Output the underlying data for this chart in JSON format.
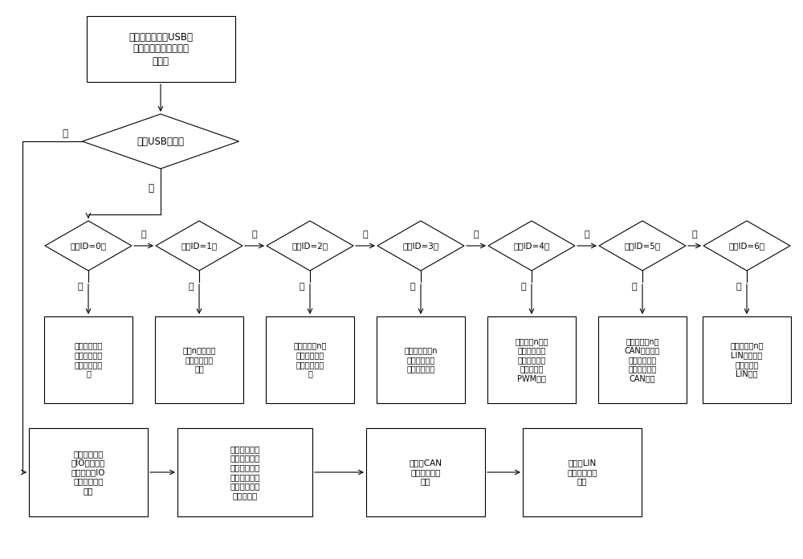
{
  "bg_color": "#ffffff",
  "line_color": "#000000",
  "title_text": "系统初始化，对USB接\n口及各个信号通道进行\n初始化",
  "usb_text": "收到USB报文？",
  "id_texts": [
    "报文ID=0？",
    "报文ID=1？",
    "报文ID=2？",
    "报文ID=3？",
    "报文ID=4？",
    "报文ID=5？",
    "报文ID=6？"
  ],
  "action_texts": [
    "根据命令打开\n或关断被测试\n单元的供电电\n源",
    "设定n号数字输\n入端口的采集\n周期",
    "将所选择的n号\n数字输出端口\n设置为预期状\n态",
    "使能所选择的n\n号脉冲输入端\n口的捕捉功能",
    "将选择的n号波\n形输出端口以\n设定的频率和\n占空比输出\nPWM波形",
    "设置选择的n号\nCAN接口波特\n率及报文过滤\n范围，或发送\nCAN报文",
    "设置选择的n号\nLIN接口波特\n率，或发送\nLIN报文"
  ],
  "bottom_texts": [
    "当数字输入端\n口IO状态发生\n变化时将其IO\n状态发送到上\n位机",
    "当脉冲输入端\n口频率或占空\n比发生变化时\n将计算出的频\n率和占空比发\n送到上位机",
    "接收到CAN\n帧，发送到上\n位机",
    "接收到LIN\n帧，发送到上\n位机"
  ],
  "yes_label": "是",
  "no_label": "否"
}
